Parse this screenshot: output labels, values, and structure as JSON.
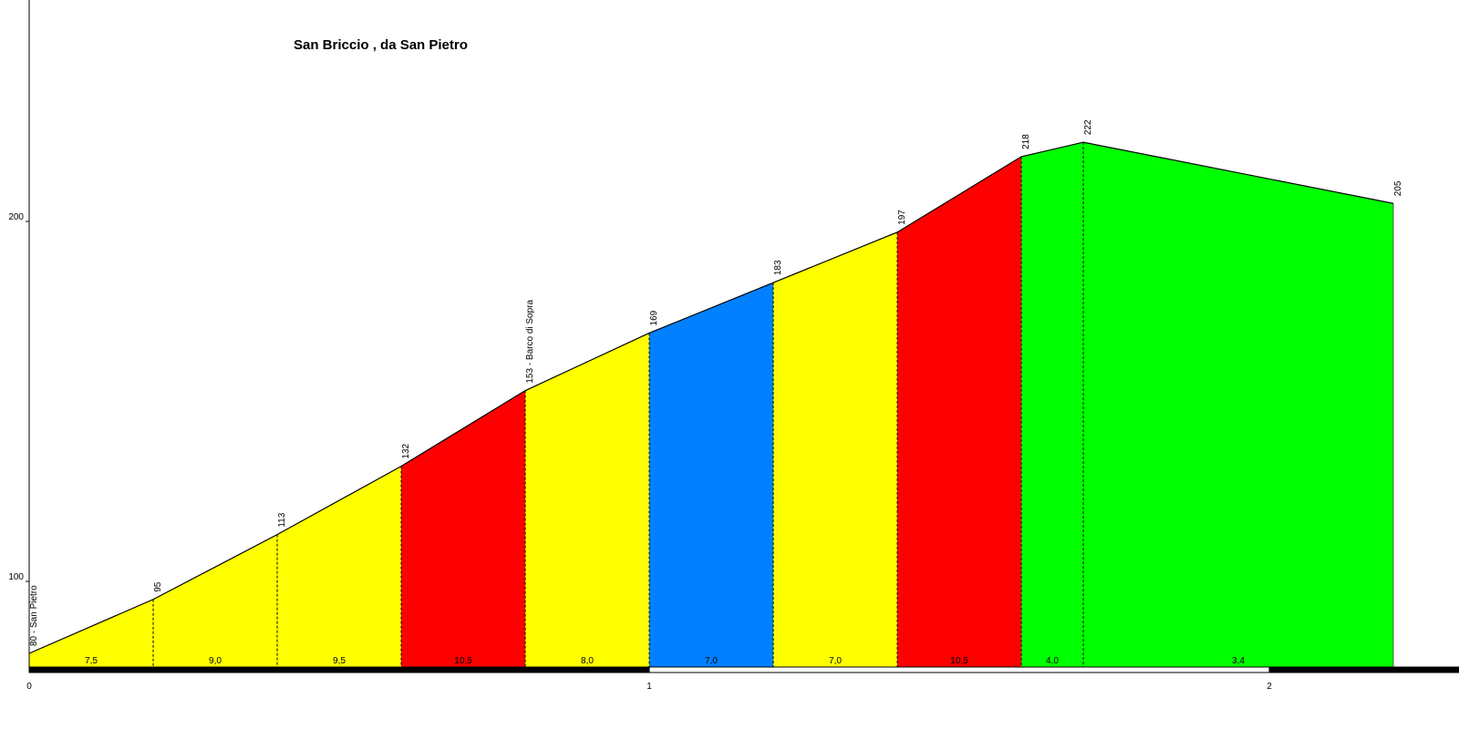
{
  "chart_data": {
    "type": "area",
    "title": "San Briccio , da San Pietro",
    "xlabel": "",
    "ylabel": "",
    "xlim": [
      0,
      2.35
    ],
    "ylim": [
      75,
      260
    ],
    "x_ticks": [
      {
        "value": 0,
        "label": "0"
      },
      {
        "value": 1,
        "label": "1"
      },
      {
        "value": 2,
        "label": "2"
      }
    ],
    "y_ticks": [
      {
        "value": 100,
        "label": "100"
      },
      {
        "value": 200,
        "label": "200"
      }
    ],
    "profile": [
      {
        "x": 0.0,
        "elev": 80,
        "label": "80 - San Pietro"
      },
      {
        "x": 0.2,
        "elev": 95,
        "label": "95"
      },
      {
        "x": 0.4,
        "elev": 113,
        "label": "113"
      },
      {
        "x": 0.6,
        "elev": 132,
        "label": "132"
      },
      {
        "x": 0.8,
        "elev": 153,
        "label": "153 - Barco di Sopra"
      },
      {
        "x": 1.0,
        "elev": 169,
        "label": "169"
      },
      {
        "x": 1.2,
        "elev": 183,
        "label": "183"
      },
      {
        "x": 1.4,
        "elev": 197,
        "label": "197"
      },
      {
        "x": 1.6,
        "elev": 218,
        "label": "218"
      },
      {
        "x": 1.7,
        "elev": 222,
        "label": "222"
      },
      {
        "x": 2.2,
        "elev": 205,
        "label": "205"
      }
    ],
    "segments": [
      {
        "grade": "7,5",
        "color": "#ffff00"
      },
      {
        "grade": "9,0",
        "color": "#ffff00"
      },
      {
        "grade": "9,5",
        "color": "#ffff00"
      },
      {
        "grade": "10,5",
        "color": "#ff0000"
      },
      {
        "grade": "8,0",
        "color": "#ffff00"
      },
      {
        "grade": "7,0",
        "color": "#0080ff"
      },
      {
        "grade": "7,0",
        "color": "#ffff00"
      },
      {
        "grade": "10,5",
        "color": "#ff0000"
      },
      {
        "grade": "4,0",
        "color": "#00ff00"
      },
      {
        "grade": "3,4",
        "color": "#00ff00"
      }
    ],
    "km_bar_colors": [
      "#000000",
      "#ffffff",
      "#000000"
    ],
    "grid": false
  }
}
